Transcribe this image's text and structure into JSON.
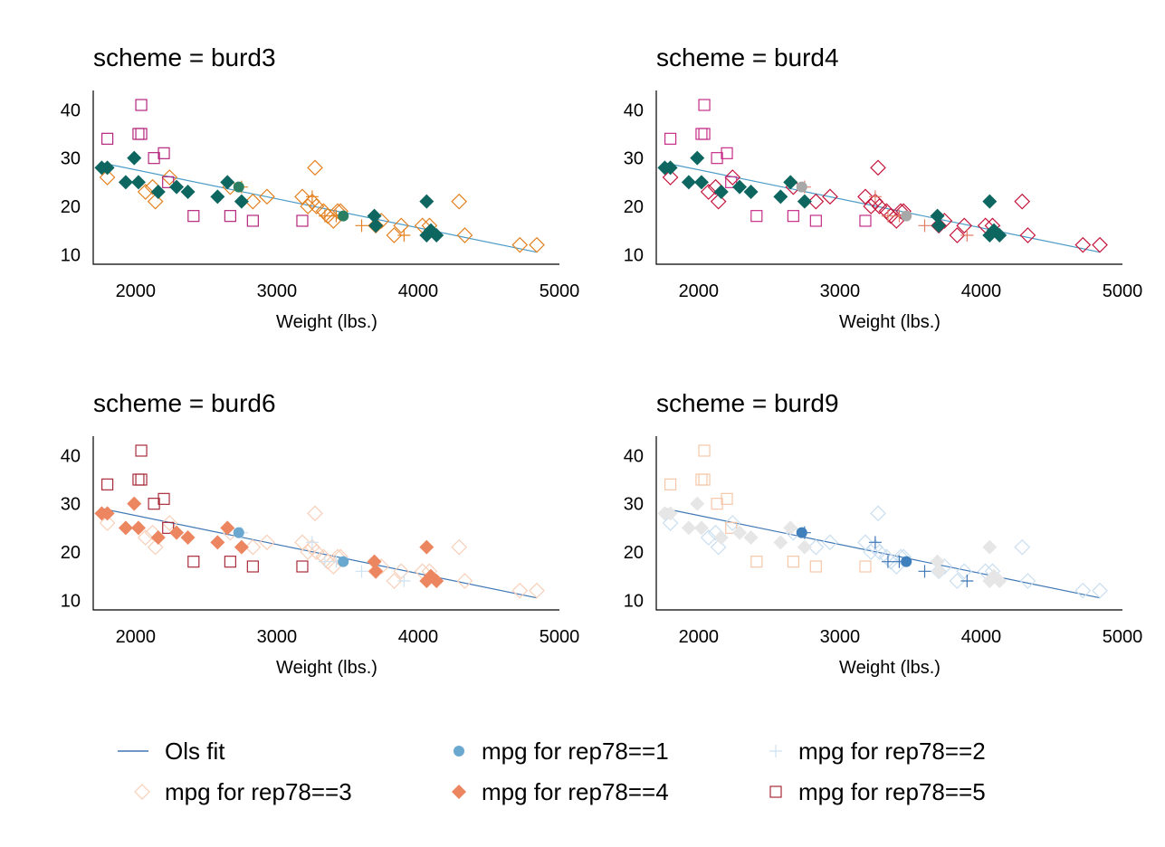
{
  "chart_data": [
    {
      "type": "scatter",
      "title": "scheme = burd3",
      "xlabel": "Weight (lbs.)",
      "ylabel": "",
      "xlim": [
        1700,
        5000
      ],
      "ylim": [
        8,
        44
      ],
      "xticks": [
        2000,
        3000,
        4000,
        5000
      ],
      "yticks": [
        10,
        20,
        30,
        40
      ],
      "grid": false,
      "colors": {
        "fit": "#4a9bc7",
        "rep1": "#2a7f62",
        "rep2": "#e3801f",
        "rep3": "#e3801f",
        "rep4": "#0e6660",
        "rep5": "#b5267c"
      }
    },
    {
      "type": "scatter",
      "title": "scheme = burd4",
      "xlabel": "Weight (lbs.)",
      "ylabel": "",
      "xlim": [
        1700,
        5000
      ],
      "ylim": [
        8,
        44
      ],
      "xticks": [
        2000,
        3000,
        4000,
        5000
      ],
      "yticks": [
        10,
        20,
        30,
        40
      ],
      "grid": false,
      "colors": {
        "fit": "#4a9bc7",
        "rep1": "#a8a8a8",
        "rep2": "#e07b64",
        "rep3": "#c4143a",
        "rep4": "#0e6660",
        "rep5": "#c62d86"
      }
    },
    {
      "type": "scatter",
      "title": "scheme = burd6",
      "xlabel": "Weight (lbs.)",
      "ylabel": "",
      "xlim": [
        1700,
        5000
      ],
      "ylim": [
        8,
        44
      ],
      "xticks": [
        2000,
        3000,
        4000,
        5000
      ],
      "yticks": [
        10,
        20,
        30,
        40
      ],
      "grid": false,
      "colors": {
        "fit": "#3f77b5",
        "rep1": "#6aa8d0",
        "rep2": "#cfe2f1",
        "rep3": "#f8cfb8",
        "rep4": "#ec8660",
        "rep5": "#a82b3a"
      }
    },
    {
      "type": "scatter",
      "title": "scheme = burd9",
      "xlabel": "Weight (lbs.)",
      "ylabel": "",
      "xlim": [
        1700,
        5000
      ],
      "ylim": [
        8,
        44
      ],
      "xticks": [
        2000,
        3000,
        4000,
        5000
      ],
      "yticks": [
        10,
        20,
        30,
        40
      ],
      "grid": false,
      "colors": {
        "fit": "#3f77b5",
        "rep1": "#3f7fbc",
        "rep2": "#3f77b5",
        "rep3": "#c9def0",
        "rep4": "#e6e6e6",
        "rep5": "#f6c7a8"
      }
    }
  ],
  "shared_data": {
    "rep1": [
      [
        2730,
        24
      ],
      [
        3470,
        18
      ]
    ],
    "rep2": [
      [
        2750,
        24
      ],
      [
        3250,
        22
      ],
      [
        3600,
        16
      ],
      [
        3900,
        14
      ],
      [
        3420,
        18
      ],
      [
        3340,
        18
      ]
    ],
    "rep3": [
      [
        1800,
        26
      ],
      [
        2120,
        24
      ],
      [
        2140,
        21
      ],
      [
        2070,
        23
      ],
      [
        2240,
        26
      ],
      [
        2670,
        24
      ],
      [
        2930,
        22
      ],
      [
        3180,
        22
      ],
      [
        3220,
        20
      ],
      [
        3250,
        21
      ],
      [
        3330,
        19
      ],
      [
        3360,
        18
      ],
      [
        3400,
        17
      ],
      [
        3430,
        19
      ],
      [
        3450,
        19
      ],
      [
        3280,
        20
      ],
      [
        3270,
        28
      ],
      [
        3700,
        16
      ],
      [
        3740,
        17
      ],
      [
        3830,
        14
      ],
      [
        3880,
        16
      ],
      [
        4030,
        16
      ],
      [
        4080,
        16
      ],
      [
        4290,
        21
      ],
      [
        4330,
        14
      ],
      [
        4720,
        12
      ],
      [
        4840,
        12
      ],
      [
        2830,
        21
      ]
    ],
    "rep4": [
      [
        1760,
        28
      ],
      [
        1800,
        28
      ],
      [
        1930,
        25
      ],
      [
        1990,
        30
      ],
      [
        2020,
        25
      ],
      [
        2160,
        23
      ],
      [
        2290,
        24
      ],
      [
        2370,
        23
      ],
      [
        2580,
        22
      ],
      [
        2650,
        25
      ],
      [
        2750,
        21
      ],
      [
        3690,
        18
      ],
      [
        3700,
        16
      ],
      [
        4060,
        21
      ],
      [
        4060,
        14
      ],
      [
        4090,
        15
      ],
      [
        4130,
        14
      ]
    ],
    "rep5": [
      [
        1800,
        34
      ],
      [
        2020,
        35
      ],
      [
        2040,
        35
      ],
      [
        2040,
        41
      ],
      [
        2130,
        30
      ],
      [
        2200,
        31
      ],
      [
        2230,
        25
      ],
      [
        2410,
        18
      ],
      [
        2670,
        18
      ],
      [
        2830,
        17
      ],
      [
        3180,
        17
      ]
    ],
    "fit": [
      [
        1760,
        29
      ],
      [
        4840,
        10.5
      ]
    ]
  },
  "legend": {
    "placement": "bottom",
    "items": [
      {
        "label": "Ols fit",
        "marker": "line"
      },
      {
        "label": "mpg for rep78==1",
        "marker": "filled-circle"
      },
      {
        "label": "mpg for rep78==2",
        "marker": "plus"
      },
      {
        "label": "mpg for rep78==3",
        "marker": "hollow-diamond"
      },
      {
        "label": "mpg for rep78==4",
        "marker": "filled-diamond"
      },
      {
        "label": "mpg for rep78==5",
        "marker": "hollow-square"
      }
    ],
    "colors": [
      "#3f77b5",
      "#6aa8d0",
      "#cfe2f1",
      "#f8cfb8",
      "#ec8660",
      "#a82b3a"
    ]
  }
}
